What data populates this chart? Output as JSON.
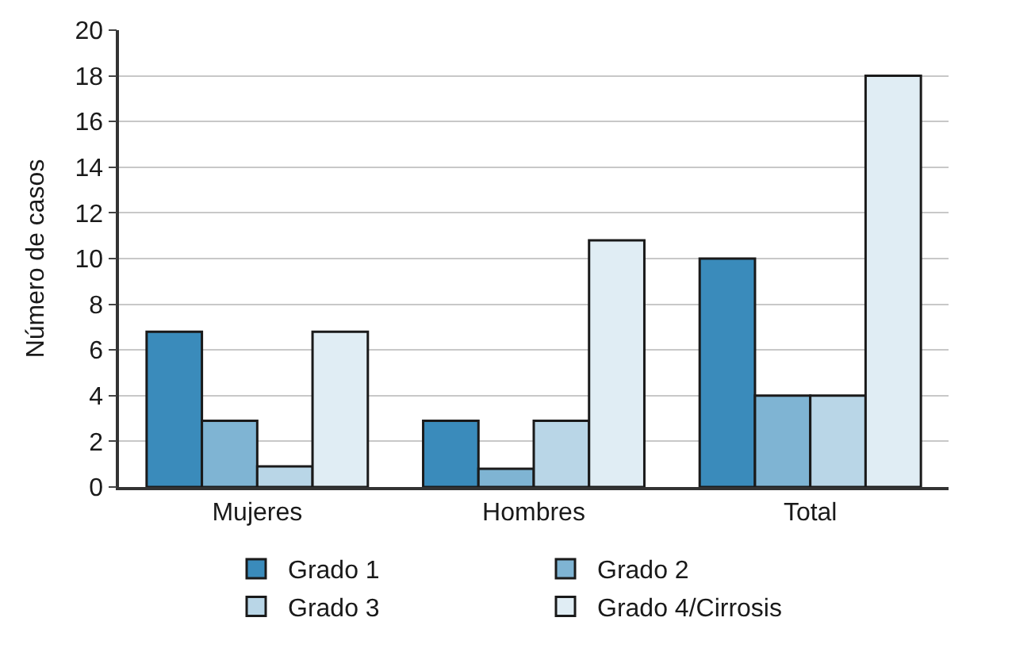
{
  "chart_data": {
    "type": "bar",
    "ylabel": "Número de casos",
    "categories": [
      "Mujeres",
      "Hombres",
      "Total"
    ],
    "series": [
      {
        "name": "Grado 1",
        "color": "#3a8bbb",
        "values": [
          6.8,
          2.9,
          10
        ]
      },
      {
        "name": "Grado 2",
        "color": "#7fb4d3",
        "values": [
          2.9,
          0.8,
          4
        ]
      },
      {
        "name": "Grado 3",
        "color": "#b9d6e7",
        "values": [
          0.9,
          2.9,
          4
        ]
      },
      {
        "name": "Grado 4/Cirrosis",
        "color": "#e0edf4",
        "values": [
          6.8,
          10.8,
          18
        ]
      }
    ],
    "ylim": [
      0,
      20
    ],
    "yticks": [
      0,
      2,
      4,
      6,
      8,
      10,
      12,
      14,
      16,
      18,
      20
    ],
    "grid": "y",
    "legend": "bottom"
  }
}
